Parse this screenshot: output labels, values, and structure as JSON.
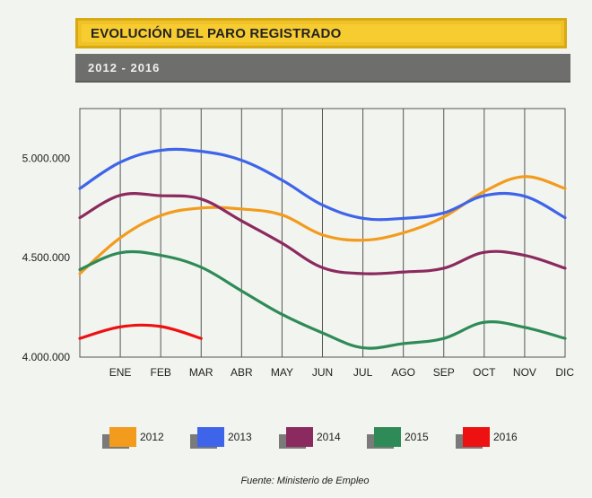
{
  "header": {
    "title": "EVOLUCIÓN DEL PARO REGISTRADO",
    "subtitle": "2012 - 2016"
  },
  "chart_data": {
    "type": "line",
    "categories": [
      "",
      "ENE",
      "FEB",
      "MAR",
      "ABR",
      "MAY",
      "JUN",
      "JUL",
      "AGO",
      "SEP",
      "OCT",
      "NOV",
      "DIC"
    ],
    "y_ticks": [
      4000000,
      4500000,
      5000000
    ],
    "y_tick_labels": [
      "4.000.000",
      "4.500.000",
      "5.000.000"
    ],
    "ylim": [
      4000000,
      5250000
    ],
    "grid": "vertical",
    "legend_position": "bottom",
    "series": [
      {
        "name": "2012",
        "color": "#f29b1d",
        "values": [
          4420000,
          4600000,
          4712000,
          4750000,
          4745000,
          4715000,
          4615000,
          4588000,
          4625000,
          4705000,
          4833000,
          4908000,
          4848000
        ]
      },
      {
        "name": "2013",
        "color": "#3e64ea",
        "values": [
          4848000,
          4980000,
          5040000,
          5035000,
          4990000,
          4890000,
          4765000,
          4698000,
          4698000,
          4725000,
          4812000,
          4809000,
          4701000
        ]
      },
      {
        "name": "2014",
        "color": "#8b2a5e",
        "values": [
          4701000,
          4814000,
          4812000,
          4795000,
          4685000,
          4573000,
          4450000,
          4420000,
          4428000,
          4447000,
          4527000,
          4512000,
          4447000
        ]
      },
      {
        "name": "2015",
        "color": "#2e8b57",
        "values": [
          4440000,
          4525000,
          4512000,
          4452000,
          4333000,
          4215000,
          4122000,
          4047000,
          4068000,
          4094000,
          4175000,
          4150000,
          4094000
        ]
      },
      {
        "name": "2016",
        "color": "#ee1111",
        "values": [
          4094000,
          4152000,
          4154000,
          4094000,
          null,
          null,
          null,
          null,
          null,
          null,
          null,
          null,
          null
        ]
      }
    ]
  },
  "footer": {
    "source": "Fuente: Ministerio de Empleo"
  }
}
